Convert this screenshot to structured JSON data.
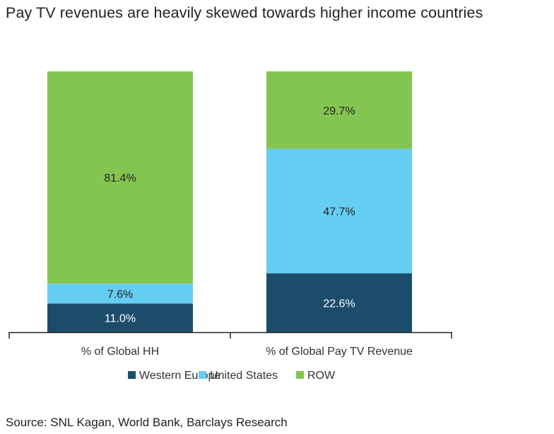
{
  "title": "Pay TV revenues are heavily skewed towards higher income countries",
  "source": "Source: SNL Kagan, World Bank, Barclays Research",
  "chart_data": {
    "type": "bar",
    "stacked": true,
    "title": "Pay TV revenues are heavily skewed towards higher income countries",
    "categories": [
      "% of Global HH",
      "% of Global Pay TV Revenue"
    ],
    "series": [
      {
        "name": "Western Europe",
        "color": "#1b4d6b",
        "label_color": "#ffffff",
        "values": [
          11.0,
          22.6
        ],
        "labels": [
          "11.0%",
          "22.6%"
        ]
      },
      {
        "name": "United States",
        "color": "#66cdf3",
        "label_color": "#222222",
        "values": [
          7.6,
          47.7
        ],
        "labels": [
          "7.6%",
          "47.7%"
        ]
      },
      {
        "name": "ROW",
        "color": "#84c551",
        "label_color": "#222222",
        "values": [
          81.4,
          29.7
        ],
        "labels": [
          "81.4%",
          "29.7%"
        ]
      }
    ],
    "ylim": [
      0,
      100
    ],
    "grid": false,
    "legend": "bottom-center"
  }
}
